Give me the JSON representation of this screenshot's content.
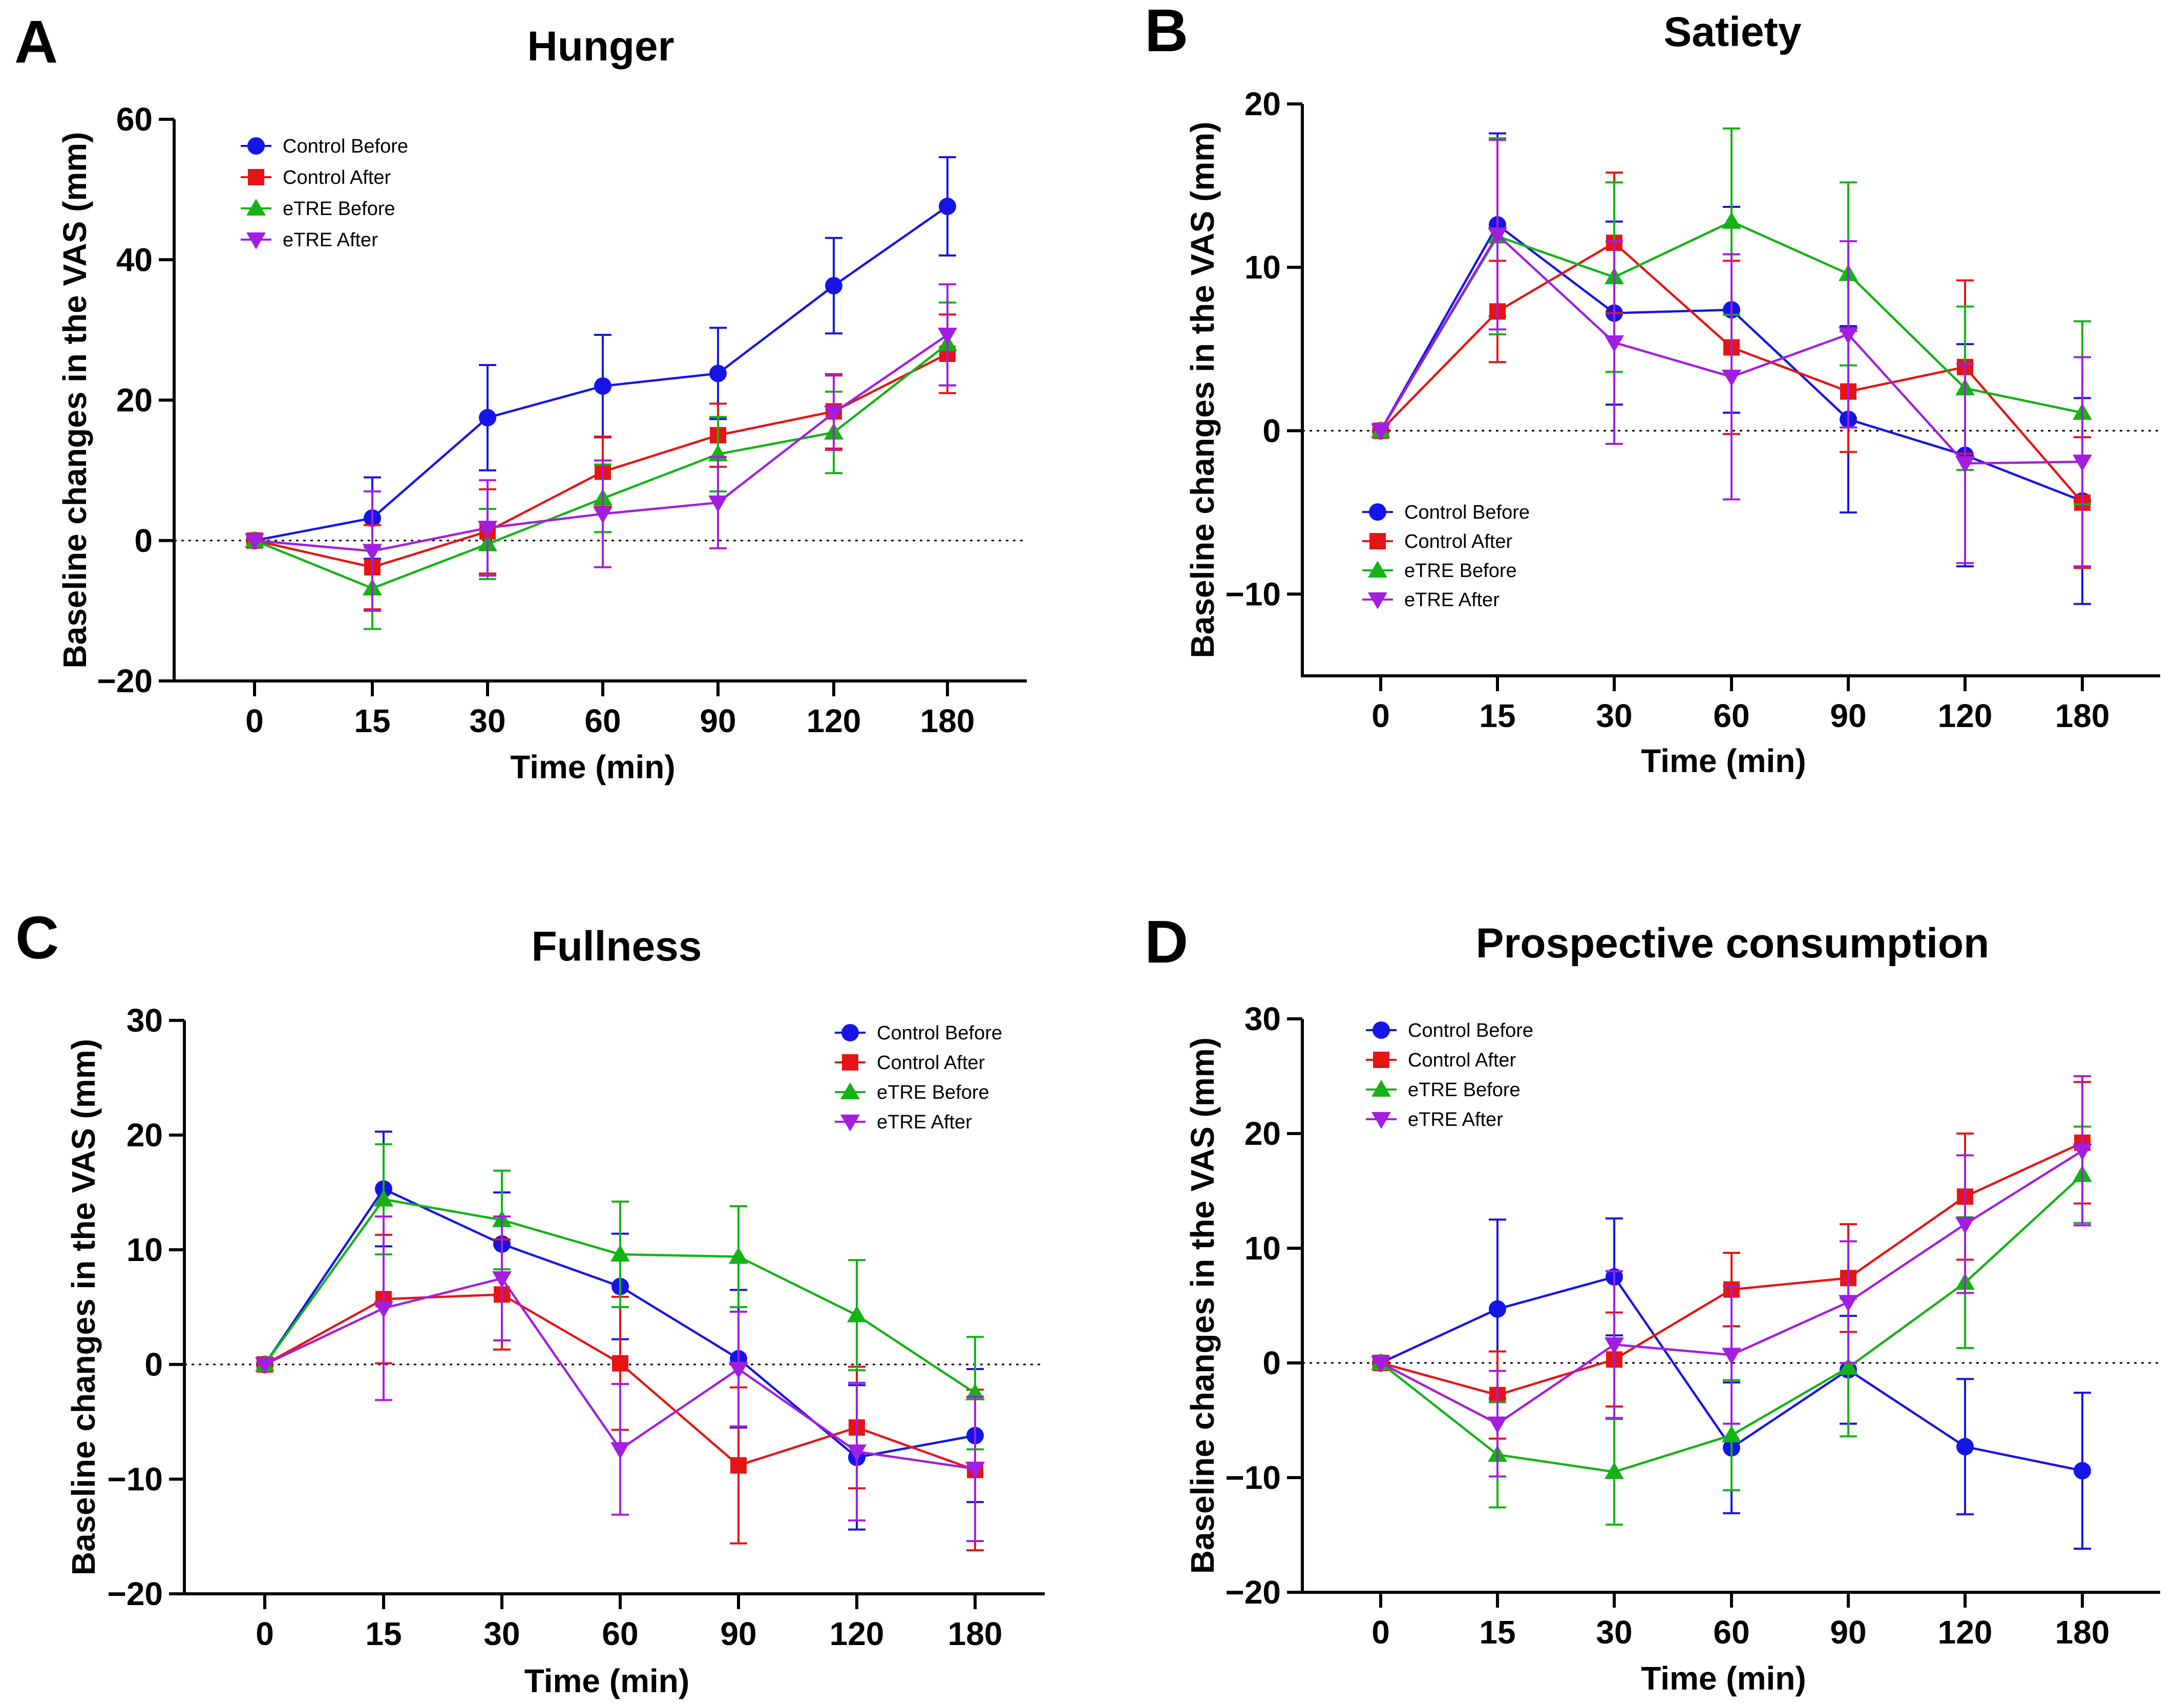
{
  "chart_data": [
    {
      "type": "line",
      "panel_label": "A",
      "title": "Hunger",
      "xlabel": "Time (min)",
      "ylabel": "Baseline changes in the VAS (mm)",
      "categories": [
        "0",
        "15",
        "30",
        "60",
        "90",
        "120",
        "180"
      ],
      "ylim": [
        -20,
        60
      ],
      "yticks": [
        -20,
        0,
        20,
        40,
        60
      ],
      "ytick_labels": [
        "−20",
        "0",
        "20",
        "40",
        "60"
      ],
      "reference_line": 0,
      "legend_position": "top-left",
      "series": [
        {
          "name": "Control Before",
          "color": "#1515e6",
          "marker": "circle",
          "values": [
            0,
            3.2,
            17.5,
            22,
            23.8,
            36.3,
            47.6
          ],
          "errors": [
            0,
            5.8,
            7.5,
            7.3,
            6.5,
            6.8,
            7.0
          ]
        },
        {
          "name": "Control After",
          "color": "#e61515",
          "marker": "square",
          "values": [
            0,
            -3.8,
            1.3,
            9.8,
            15.0,
            18.4,
            26.6
          ],
          "errors": [
            0,
            6.0,
            6.0,
            5.0,
            4.5,
            5.3,
            5.6
          ]
        },
        {
          "name": "eTRE Before",
          "color": "#15b215",
          "marker": "triangle-up",
          "values": [
            0,
            -6.8,
            -0.5,
            6.0,
            12.3,
            15.4,
            28.0
          ],
          "errors": [
            0,
            5.8,
            5.0,
            4.8,
            5.3,
            5.8,
            5.9
          ]
        },
        {
          "name": "eTRE After",
          "color": "#a31ee0",
          "marker": "triangle-down",
          "values": [
            0,
            -1.5,
            1.8,
            3.8,
            5.4,
            18.2,
            29.3
          ],
          "errors": [
            0,
            8.5,
            6.8,
            7.6,
            6.5,
            5.3,
            7.2
          ]
        }
      ]
    },
    {
      "type": "line",
      "panel_label": "B",
      "title": "Satiety",
      "xlabel": "Time (min)",
      "ylabel": "Baseline changes in the VAS (mm)",
      "categories": [
        "0",
        "15",
        "30",
        "60",
        "90",
        "120",
        "180"
      ],
      "ylim": [
        -15,
        20
      ],
      "yticks": [
        -10,
        0,
        10,
        20
      ],
      "ytick_labels": [
        "−10",
        "0",
        "10",
        "20"
      ],
      "reference_line": 0,
      "legend_position": "bottom-left",
      "series": [
        {
          "name": "Control Before",
          "color": "#1515e6",
          "marker": "circle",
          "values": [
            0,
            12.6,
            7.2,
            7.4,
            0.7,
            -1.5,
            -4.3
          ],
          "errors": [
            0,
            5.6,
            5.6,
            6.3,
            5.7,
            6.8,
            6.3
          ]
        },
        {
          "name": "Control After",
          "color": "#e61515",
          "marker": "square",
          "values": [
            0,
            7.3,
            11.5,
            5.1,
            2.4,
            3.9,
            -4.4
          ],
          "errors": [
            0,
            3.1,
            4.3,
            5.3,
            3.7,
            5.3,
            4.0
          ]
        },
        {
          "name": "eTRE Before",
          "color": "#15b215",
          "marker": "triangle-up",
          "values": [
            0,
            11.9,
            9.4,
            12.8,
            9.6,
            2.6,
            1.1
          ],
          "errors": [
            0,
            6.0,
            5.8,
            5.7,
            5.6,
            5.0,
            5.6
          ]
        },
        {
          "name": "eTRE After",
          "color": "#a31ee0",
          "marker": "triangle-down",
          "values": [
            0,
            12.0,
            5.4,
            3.3,
            5.9,
            -2.0,
            -1.9
          ],
          "errors": [
            0,
            5.8,
            6.2,
            7.5,
            5.7,
            6.1,
            6.4
          ]
        }
      ]
    },
    {
      "type": "line",
      "panel_label": "C",
      "title": "Fullness",
      "xlabel": "Time (min)",
      "ylabel": "Baseline changes in the VAS (mm)",
      "categories": [
        "0",
        "15",
        "30",
        "60",
        "90",
        "120",
        "180"
      ],
      "ylim": [
        -20,
        30
      ],
      "yticks": [
        -20,
        -10,
        0,
        10,
        20,
        30
      ],
      "ytick_labels": [
        "−20",
        "−10",
        "0",
        "10",
        "20",
        "30"
      ],
      "reference_line": 0,
      "legend_position": "top-right",
      "series": [
        {
          "name": "Control Before",
          "color": "#1515e6",
          "marker": "circle",
          "values": [
            0,
            15.3,
            10.5,
            6.8,
            0.5,
            -8.1,
            -6.2
          ],
          "errors": [
            0,
            5.0,
            4.5,
            4.6,
            6.0,
            6.3,
            5.8
          ]
        },
        {
          "name": "Control After",
          "color": "#e61515",
          "marker": "square",
          "values": [
            0,
            5.7,
            6.1,
            0.1,
            -8.8,
            -5.5,
            -9.2
          ],
          "errors": [
            0,
            5.6,
            4.8,
            5.8,
            6.8,
            5.3,
            7.0
          ]
        },
        {
          "name": "eTRE Before",
          "color": "#15b215",
          "marker": "triangle-up",
          "values": [
            0,
            14.4,
            12.6,
            9.6,
            9.4,
            4.3,
            -2.5
          ],
          "errors": [
            0,
            4.8,
            4.3,
            4.6,
            4.4,
            4.8,
            4.9
          ]
        },
        {
          "name": "eTRE After",
          "color": "#a31ee0",
          "marker": "triangle-down",
          "values": [
            0,
            4.9,
            7.5,
            -7.4,
            -0.4,
            -7.6,
            -9.1
          ],
          "errors": [
            0,
            8.0,
            5.4,
            5.7,
            5.0,
            6.0,
            6.3
          ]
        }
      ]
    },
    {
      "type": "line",
      "panel_label": "D",
      "title": "Prospective consumption",
      "xlabel": "Time (min)",
      "ylabel": "Baseline changes in the VAS (mm)",
      "categories": [
        "0",
        "15",
        "30",
        "60",
        "90",
        "120",
        "180"
      ],
      "ylim": [
        -20,
        30
      ],
      "yticks": [
        -20,
        -10,
        0,
        10,
        20,
        30
      ],
      "ytick_labels": [
        "−20",
        "−10",
        "0",
        "10",
        "20",
        "30"
      ],
      "reference_line": 0,
      "legend_position": "top-left",
      "series": [
        {
          "name": "Control Before",
          "color": "#1515e6",
          "marker": "circle",
          "values": [
            0,
            4.7,
            7.5,
            -7.4,
            -0.6,
            -7.3,
            -9.4
          ],
          "errors": [
            0,
            7.8,
            5.1,
            5.7,
            4.7,
            5.9,
            6.8
          ]
        },
        {
          "name": "Control After",
          "color": "#e61515",
          "marker": "square",
          "values": [
            0,
            -2.8,
            0.3,
            6.4,
            7.4,
            14.5,
            19.2
          ],
          "errors": [
            0,
            3.8,
            4.1,
            3.2,
            4.7,
            5.5,
            5.3
          ]
        },
        {
          "name": "eTRE Before",
          "color": "#15b215",
          "marker": "triangle-up",
          "values": [
            0,
            -8.0,
            -9.5,
            -6.3,
            -0.4,
            7.0,
            16.4
          ],
          "errors": [
            0,
            4.6,
            4.6,
            4.8,
            6.0,
            5.7,
            4.2
          ]
        },
        {
          "name": "eTRE After",
          "color": "#a31ee0",
          "marker": "triangle-down",
          "values": [
            0,
            -5.3,
            1.6,
            0.7,
            5.3,
            12.1,
            18.5
          ],
          "errors": [
            0,
            4.6,
            6.4,
            6.0,
            5.3,
            6.0,
            6.5
          ]
        }
      ]
    }
  ]
}
